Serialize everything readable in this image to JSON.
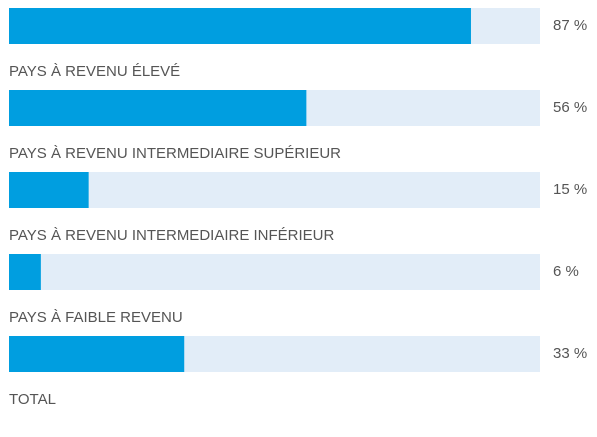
{
  "chart_data": {
    "type": "bar",
    "orientation": "horizontal",
    "categories": [
      "PAYS À REVENU ÉLEVÉ",
      "PAYS À REVENU INTERMEDIAIRE SUPÉRIEUR",
      "PAYS À REVENU INTERMEDIAIRE INFÉRIEUR",
      "PAYS À FAIBLE REVENU",
      "TOTAL"
    ],
    "values": [
      87,
      56,
      15,
      6,
      33
    ],
    "value_labels": [
      "87 %",
      "56 %",
      "15 %",
      "6 %",
      "33 %"
    ],
    "color": "#009ee0",
    "track_color": "#e2edf8",
    "xlim": [
      0,
      100
    ]
  }
}
